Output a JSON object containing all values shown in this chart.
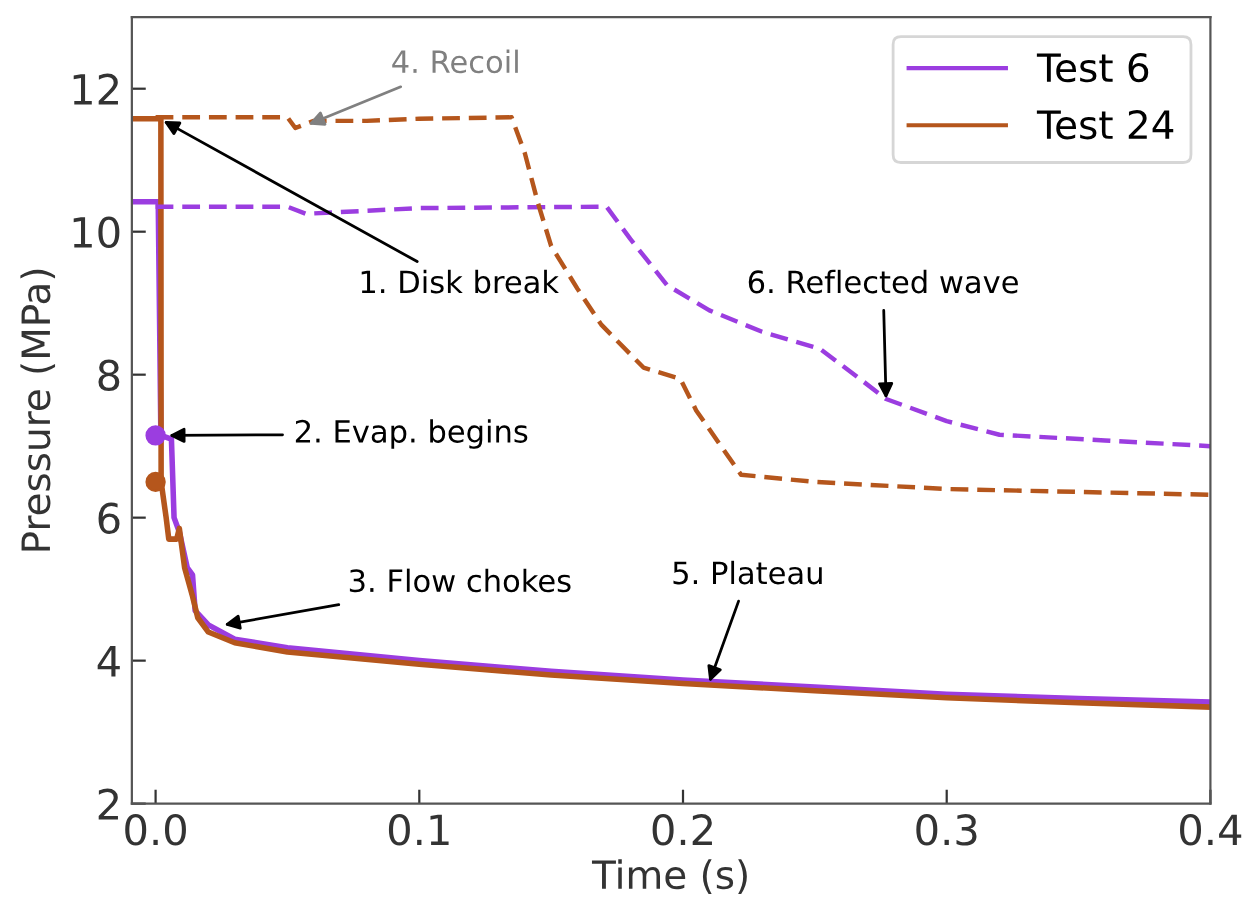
{
  "chart_data": {
    "type": "line",
    "xlabel": "Time (s)",
    "ylabel": "Pressure (MPa)",
    "xlim": [
      -0.009,
      0.4
    ],
    "ylim": [
      2,
      13
    ],
    "xticks": [
      {
        "value": 0,
        "label": "0.0"
      },
      0.1,
      0.2,
      0.3,
      0.4
    ],
    "yticks": [
      2,
      4,
      6,
      8,
      10,
      12
    ],
    "grid": false,
    "legend": "top right",
    "line_style": "solid",
    "marker": "none",
    "series": [
      {
        "name": "Test 6",
        "color": "#9b3de0",
        "x": [
          -0.008,
          0.001,
          0.002,
          0.006,
          0.007,
          0.009,
          0.012,
          0.014,
          0.015,
          0.02,
          0.03,
          0.05,
          0.1,
          0.15,
          0.2,
          0.25,
          0.3,
          0.35,
          0.4
        ],
        "values": [
          10.42,
          10.42,
          7.15,
          7.1,
          6.0,
          5.8,
          5.3,
          5.2,
          4.7,
          4.5,
          4.3,
          4.18,
          4.0,
          3.85,
          3.73,
          3.63,
          3.53,
          3.47,
          3.42
        ]
      },
      {
        "name": "Test 24",
        "color": "#b5561c",
        "x": [
          -0.008,
          0.002,
          0.0021,
          0.004,
          0.005,
          0.008,
          0.009,
          0.011,
          0.014,
          0.016,
          0.02,
          0.03,
          0.05,
          0.1,
          0.15,
          0.2,
          0.25,
          0.3,
          0.35,
          0.4
        ],
        "values": [
          11.58,
          11.58,
          6.5,
          6.0,
          5.7,
          5.7,
          5.85,
          5.3,
          4.9,
          4.6,
          4.4,
          4.25,
          4.12,
          3.95,
          3.8,
          3.68,
          3.58,
          3.48,
          3.41,
          3.35
        ]
      },
      {
        "color": "#9b3de0",
        "line_style": "dashed",
        "x": [
          0.0,
          0.05,
          0.057,
          0.1,
          0.171,
          0.18,
          0.194,
          0.21,
          0.23,
          0.252,
          0.265,
          0.277,
          0.3,
          0.32,
          0.36,
          0.4
        ],
        "values": [
          10.35,
          10.35,
          10.25,
          10.33,
          10.35,
          9.9,
          9.25,
          8.9,
          8.6,
          8.36,
          8.0,
          7.66,
          7.35,
          7.16,
          7.08,
          7.0
        ]
      },
      {
        "color": "#b5561c",
        "line_style": "dashed",
        "x": [
          0.0,
          0.05,
          0.053,
          0.06,
          0.08,
          0.1,
          0.135,
          0.14,
          0.145,
          0.15,
          0.16,
          0.169,
          0.185,
          0.199,
          0.205,
          0.222,
          0.25,
          0.3,
          0.4
        ],
        "values": [
          11.6,
          11.6,
          11.45,
          11.55,
          11.55,
          11.58,
          11.6,
          11.1,
          10.4,
          9.8,
          9.2,
          8.7,
          8.1,
          7.94,
          7.5,
          6.6,
          6.5,
          6.4,
          6.32
        ]
      },
      {
        "type": "scatter",
        "marker": "circle",
        "color": "#9b3de0",
        "x": [
          0.0
        ],
        "values": [
          7.15
        ]
      },
      {
        "type": "scatter",
        "marker": "circle",
        "color": "#b5561c",
        "x": [
          0.0
        ],
        "values": [
          6.5
        ]
      }
    ],
    "annotations": [
      {
        "text": "1. Disk break",
        "x": 0.003,
        "y": 11.55
      },
      {
        "text": "2. Evap. begins",
        "x": 0.005,
        "y": 7.15
      },
      {
        "text": "3. Flow chokes",
        "x": 0.026,
        "y": 4.5
      },
      {
        "text": "4. Recoil",
        "x": 0.058,
        "y": 11.5
      },
      {
        "text": "5. Plateau",
        "x": 0.21,
        "y": 3.7
      },
      {
        "text": "6. Reflected wave",
        "x": 0.277,
        "y": 7.66
      }
    ]
  }
}
